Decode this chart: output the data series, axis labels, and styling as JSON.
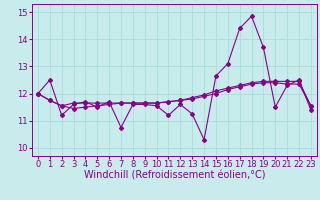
{
  "background_color": "#c8ecec",
  "grid_color": "#aadddd",
  "line_color": "#880088",
  "xlim": [
    -0.5,
    23.5
  ],
  "ylim": [
    9.7,
    15.3
  ],
  "yticks": [
    10,
    11,
    12,
    13,
    14,
    15
  ],
  "xticks": [
    0,
    1,
    2,
    3,
    4,
    5,
    6,
    7,
    8,
    9,
    10,
    11,
    12,
    13,
    14,
    15,
    16,
    17,
    18,
    19,
    20,
    21,
    22,
    23
  ],
  "xlabel": "Windchill (Refroidissement éolien,°C)",
  "xlabel_fontsize": 7,
  "tick_fontsize": 6,
  "line1_x": [
    0,
    1,
    2,
    3,
    4,
    5,
    6,
    7,
    8,
    9,
    10,
    11,
    12,
    13,
    14,
    15,
    16,
    17,
    18,
    19,
    20,
    21,
    22,
    23
  ],
  "line1_y": [
    12.0,
    12.5,
    11.2,
    11.6,
    11.7,
    11.5,
    11.7,
    10.75,
    11.6,
    11.6,
    11.55,
    11.2,
    11.6,
    11.25,
    10.3,
    12.65,
    13.1,
    14.4,
    14.85,
    13.7,
    11.5,
    12.3,
    12.5,
    11.4
  ],
  "line2_x": [
    0,
    1,
    2,
    3,
    4,
    5,
    6,
    7,
    8,
    9,
    10,
    11,
    12,
    13,
    14,
    15,
    16,
    17,
    18,
    19,
    20,
    21,
    22,
    23
  ],
  "line2_y": [
    12.0,
    11.75,
    11.55,
    11.65,
    11.65,
    11.65,
    11.65,
    11.65,
    11.65,
    11.65,
    11.65,
    11.7,
    11.75,
    11.8,
    11.9,
    12.0,
    12.15,
    12.25,
    12.35,
    12.4,
    12.4,
    12.35,
    12.35,
    11.55
  ],
  "line3_x": [
    0,
    1,
    2,
    3,
    4,
    5,
    6,
    7,
    8,
    9,
    10,
    11,
    12,
    13,
    14,
    15,
    16,
    17,
    18,
    19,
    20,
    21,
    22,
    23
  ],
  "line3_y": [
    12.0,
    11.75,
    11.55,
    11.45,
    11.5,
    11.55,
    11.6,
    11.65,
    11.65,
    11.65,
    11.65,
    11.7,
    11.75,
    11.85,
    11.95,
    12.1,
    12.2,
    12.3,
    12.4,
    12.45,
    12.45,
    12.45,
    12.45,
    11.55
  ]
}
